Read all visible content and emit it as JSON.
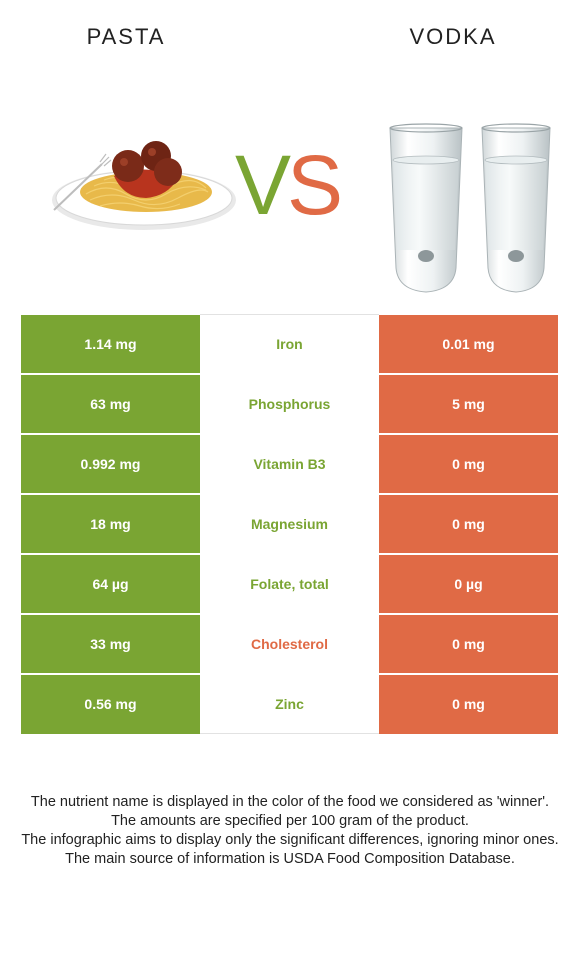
{
  "header": {
    "left_food": "PASTA",
    "right_food": "VODKA",
    "vs_v": "V",
    "vs_s": "S"
  },
  "colors": {
    "left_winner": "#7aa533",
    "right_winner": "#e06a45"
  },
  "images": {
    "left": "spaghetti-meatballs-plate",
    "right": "two-shot-glasses"
  },
  "rows": [
    {
      "nutrient": "Iron",
      "left": "1.14 mg",
      "right": "0.01 mg",
      "winner": "left"
    },
    {
      "nutrient": "Phosphorus",
      "left": "63 mg",
      "right": "5 mg",
      "winner": "left"
    },
    {
      "nutrient": "Vitamin B3",
      "left": "0.992 mg",
      "right": "0 mg",
      "winner": "left"
    },
    {
      "nutrient": "Magnesium",
      "left": "18 mg",
      "right": "0 mg",
      "winner": "left"
    },
    {
      "nutrient": "Folate, total",
      "left": "64 µg",
      "right": "0 µg",
      "winner": "left"
    },
    {
      "nutrient": "Cholesterol",
      "left": "33 mg",
      "right": "0 mg",
      "winner": "right"
    },
    {
      "nutrient": "Zinc",
      "left": "0.56 mg",
      "right": "0 mg",
      "winner": "left"
    }
  ],
  "footer": {
    "line1": "The nutrient name is displayed in the color of the food we considered as 'winner'.",
    "line2": "The amounts are specified per 100 gram of the product.",
    "line3": "The infographic aims to display only the significant differences, ignoring minor ones.",
    "line4": "The main source of information is USDA Food Composition Database."
  }
}
